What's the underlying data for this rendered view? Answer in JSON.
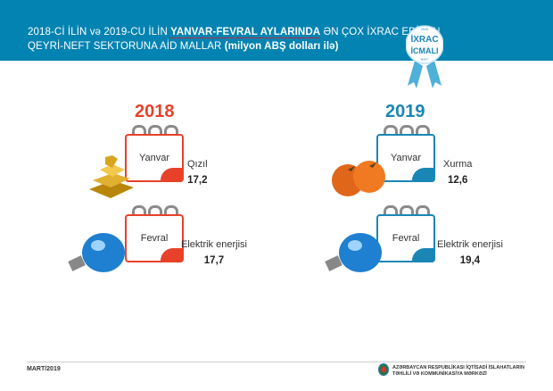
{
  "header": {
    "title_part1": "2018-Cİ İLİN və 2019-CU İLİN ",
    "title_bold": "YANVAR-FEVRAL AYLARINDA",
    "title_part2": " ƏN ÇOX İXRAC EDİLƏN",
    "title_line2": "QEYRİ-NEFT SEKTORUNA AİD MALLAR ",
    "title_unit": "(milyon ABŞ dolları ilə)"
  },
  "badge": {
    "line1": "İXRAC",
    "line2": "İCMALI",
    "year": "2019",
    "month": "MART"
  },
  "colors": {
    "header": "#0383b1",
    "y2018": "#e8412a",
    "y2019": "#1a86b5"
  },
  "columns": [
    {
      "year": "2018",
      "items": [
        {
          "month": "Yanvar",
          "product": "Qızıl",
          "value": "17,2",
          "icon": "gold-bars-icon"
        },
        {
          "month": "Fevral",
          "product": "Elektrik enerjisi",
          "value": "17,7",
          "icon": "light-bulb-icon"
        }
      ]
    },
    {
      "year": "2019",
      "items": [
        {
          "month": "Yanvar",
          "product": "Xurma",
          "value": "12,6",
          "icon": "persimmon-icon"
        },
        {
          "month": "Fevral",
          "product": "Elektrik enerjisi",
          "value": "19,4",
          "icon": "light-bulb-icon"
        }
      ]
    }
  ],
  "footer": {
    "date": "MART/2019",
    "org_line1": "AZƏRBAYCAN RESPUBLİKASI İQTİSADİ İSLAHATLARIN",
    "org_line2": "TƏHLİLİ VƏ KOMMUNİKASİYA MƏRKƏZİ"
  }
}
